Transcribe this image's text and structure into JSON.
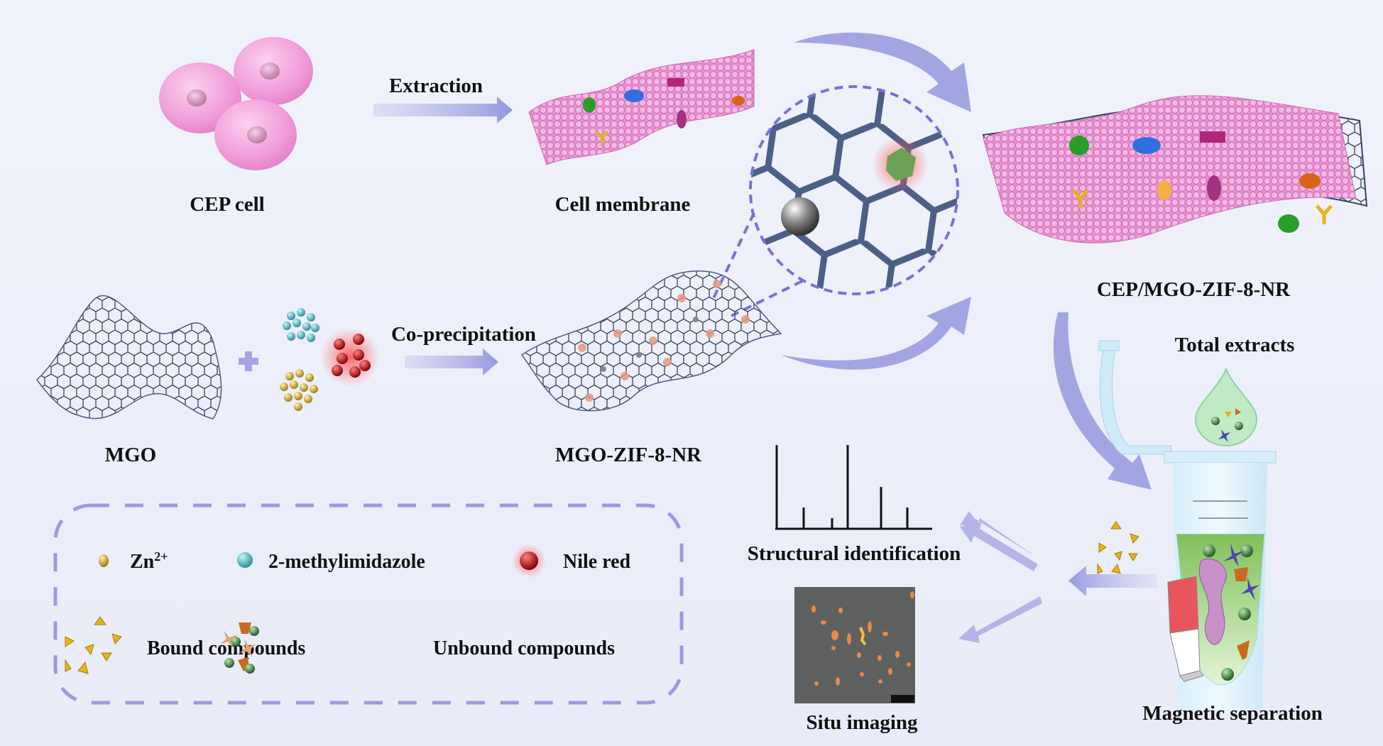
{
  "labels": {
    "cep_cell": "CEP cell",
    "extraction": "Extraction",
    "cell_membrane": "Cell membrane",
    "cep_mgo_zif": "CEP/MGO-ZIF-8-NR",
    "mgo": "MGO",
    "co_precipitation": "Co-precipitation",
    "mgo_zif": "MGO-ZIF-8-NR",
    "total_extracts": "Total extracts",
    "structural_identification": "Structural identification",
    "situ_imaging": "Situ imaging",
    "magnetic_separation": "Magnetic separation"
  },
  "legend": {
    "zn": "Zn",
    "zn_charge": "2+",
    "methylimidazole": "2-methylimidazole",
    "nile_red": "Nile red",
    "bound": "Bound compounds",
    "unbound": "Unbound compounds"
  },
  "colors": {
    "background": "#eef1fa",
    "arrow": "#9c9ee0",
    "membrane": "#e48ccb",
    "graphene": "#3a4a66",
    "zn": "#d6b13e",
    "methylimidazole": "#45bcc4",
    "nile_red": "#d10f0f",
    "bound": "#e6b31a",
    "tube_liquid": "#9ccc6a"
  }
}
